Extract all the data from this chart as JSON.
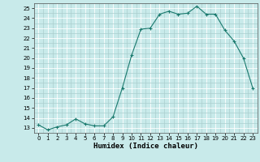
{
  "x": [
    0,
    1,
    2,
    3,
    4,
    5,
    6,
    7,
    8,
    9,
    10,
    11,
    12,
    13,
    14,
    15,
    16,
    17,
    18,
    19,
    20,
    21,
    22,
    23
  ],
  "y": [
    13.3,
    12.8,
    13.1,
    13.3,
    13.9,
    13.4,
    13.2,
    13.2,
    14.1,
    17.0,
    20.3,
    22.9,
    23.0,
    24.4,
    24.7,
    24.4,
    24.5,
    25.2,
    24.4,
    24.4,
    22.8,
    21.7,
    20.0,
    17.0
  ],
  "line_color": "#1a7a6e",
  "marker": "+",
  "marker_size": 3,
  "xlabel": "Humidex (Indice chaleur)",
  "xlim": [
    -0.5,
    23.5
  ],
  "ylim": [
    12.5,
    25.5
  ],
  "yticks": [
    13,
    14,
    15,
    16,
    17,
    18,
    19,
    20,
    21,
    22,
    23,
    24,
    25
  ],
  "xticks": [
    0,
    1,
    2,
    3,
    4,
    5,
    6,
    7,
    8,
    9,
    10,
    11,
    12,
    13,
    14,
    15,
    16,
    17,
    18,
    19,
    20,
    21,
    22,
    23
  ],
  "bg_color": "#c8eaea",
  "grid_minor_color": "#aacece",
  "grid_major_color": "#ffffff"
}
